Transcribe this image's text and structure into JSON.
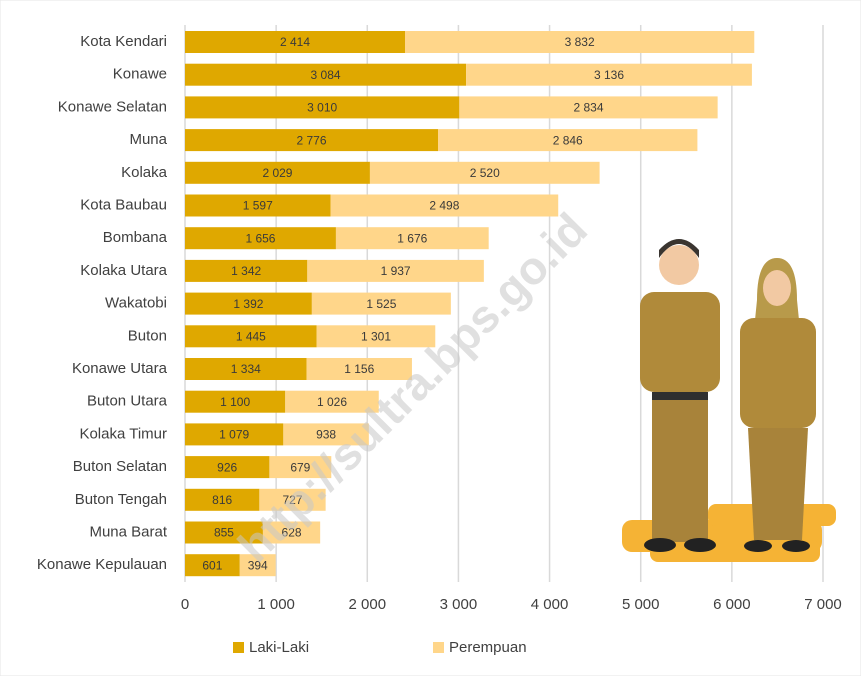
{
  "chart_data": {
    "type": "stacked-barh",
    "watermark": "http://sultra.bps.go.id",
    "categories": [
      "Kota Kendari",
      "Konawe",
      "Konawe Selatan",
      "Muna",
      "Kolaka",
      "Kota Baubau",
      "Bombana",
      "Kolaka Utara",
      "Wakatobi",
      "Buton",
      "Konawe Utara",
      "Buton Utara",
      "Kolaka Timur",
      "Buton Selatan",
      "Buton Tengah",
      "Muna Barat",
      "Konawe Kepulauan"
    ],
    "series": [
      {
        "name": "Laki-Laki",
        "color": "#dfa800",
        "values": [
          2414,
          3084,
          3010,
          2776,
          2029,
          1597,
          1656,
          1342,
          1392,
          1445,
          1334,
          1100,
          1079,
          926,
          816,
          855,
          601
        ],
        "value_labels": [
          "2 414",
          "3 084",
          "3 010",
          "2 776",
          "2 029",
          "1 597",
          "1 656",
          "1 342",
          "1 392",
          "1 445",
          "1 334",
          "1 100",
          "1 079",
          "926",
          "816",
          "855",
          "601"
        ]
      },
      {
        "name": "Perempuan",
        "color": "#ffd68a",
        "values": [
          3832,
          3136,
          2834,
          2846,
          2520,
          2498,
          1676,
          1937,
          1525,
          1301,
          1156,
          1026,
          938,
          679,
          727,
          628,
          394
        ],
        "value_labels": [
          "3 832",
          "3 136",
          "2 834",
          "2 846",
          "2 520",
          "2 498",
          "1 676",
          "1 937",
          "1 525",
          "1 301",
          "1 156",
          "1 026",
          "938",
          "679",
          "727",
          "628",
          "394"
        ]
      }
    ],
    "xlim": [
      0,
      7000
    ],
    "xticks": [
      0,
      {
        "value": 1000,
        "label": "1 000"
      },
      {
        "value": 2000,
        "label": "2 000"
      },
      {
        "value": 3000,
        "label": "3 000"
      },
      {
        "value": 4000,
        "label": "4 000"
      },
      {
        "value": 5000,
        "label": "5 000"
      },
      {
        "value": 6000,
        "label": "6 000"
      },
      {
        "value": 7000,
        "label": "7 000"
      }
    ],
    "grid": true,
    "legend": "bottom"
  }
}
